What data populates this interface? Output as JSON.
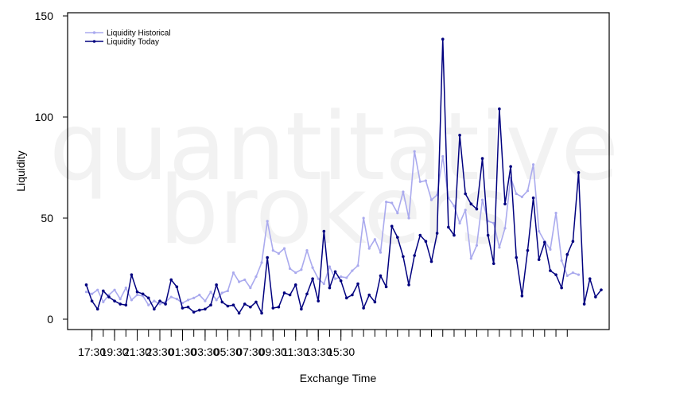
{
  "chart_data": {
    "type": "line",
    "title": "",
    "xlabel": "Exchange Time",
    "ylabel": "Liquidity",
    "ylim": [
      -5,
      150
    ],
    "yticks": [
      0,
      50,
      100,
      150
    ],
    "grid": false,
    "legend_position": "top-left",
    "watermark": [
      "quantitative",
      "brokers"
    ],
    "x_start_time": "17:00",
    "x_interval_minutes": 30,
    "x_tick_labels": [
      "17:30",
      "19:30",
      "21:30",
      "23:30",
      "01:30",
      "03:30",
      "05:30",
      "07:30",
      "09:30",
      "11:30",
      "13:30",
      "15:30"
    ],
    "x_tick_label_index": [
      1,
      5,
      9,
      13,
      17,
      21,
      25,
      29,
      33,
      37,
      41,
      45
    ],
    "series": [
      {
        "name": "Liquidity Historical",
        "color": "#aaaaee",
        "values": [
          13.5,
          12.5,
          14.5,
          8.5,
          12,
          14.5,
          10,
          15.5,
          9.5,
          12,
          11.5,
          7,
          9,
          7.5,
          8.5,
          11,
          10,
          8,
          9.5,
          10.5,
          12,
          9,
          13.5,
          9.5,
          13,
          14,
          23,
          18.5,
          19.5,
          15.5,
          21,
          28,
          48.5,
          34,
          32.5,
          35,
          25,
          23,
          24.5,
          34,
          25.5,
          20,
          17.5,
          26,
          20,
          21,
          20.5,
          24,
          26.5,
          50,
          35,
          39.5,
          33,
          58,
          57.5,
          52.5,
          63,
          50,
          83,
          68,
          68.5,
          59,
          61.5,
          80.5,
          60,
          56,
          47.5,
          54,
          30,
          36.5,
          59,
          48.5,
          47.5,
          35.5,
          45,
          70,
          62,
          60.5,
          63.5,
          76.5,
          43.5,
          38.5,
          34.5,
          52.5,
          29,
          21.5,
          23,
          22
        ]
      },
      {
        "name": "Liquidity Today",
        "color": "#00007f",
        "values": [
          17,
          9,
          5,
          14,
          11,
          9,
          7.5,
          7,
          22,
          13.5,
          12.5,
          10.5,
          5,
          9,
          7.5,
          19.5,
          16,
          5.5,
          6,
          3.5,
          4.5,
          5,
          7,
          17,
          8.5,
          6.5,
          7,
          3,
          7.5,
          6,
          8.5,
          3,
          30.5,
          5.5,
          6,
          13,
          12,
          17,
          5,
          12.5,
          20,
          9,
          43.5,
          15.5,
          23.5,
          19,
          10.5,
          12,
          17.5,
          5.5,
          12,
          8.5,
          21.5,
          16,
          46,
          40.5,
          31,
          17,
          31.5,
          41.5,
          38.5,
          28.5,
          42.5,
          138.5,
          45.5,
          41.5,
          91,
          62,
          57,
          54.5,
          79.5,
          41.5,
          27.5,
          104,
          57,
          75.5,
          30.5,
          11.5,
          34,
          60,
          29.5,
          38,
          24,
          22,
          15.5,
          32,
          38.5,
          72.5,
          7.5,
          20,
          11,
          14.5
        ]
      }
    ]
  }
}
